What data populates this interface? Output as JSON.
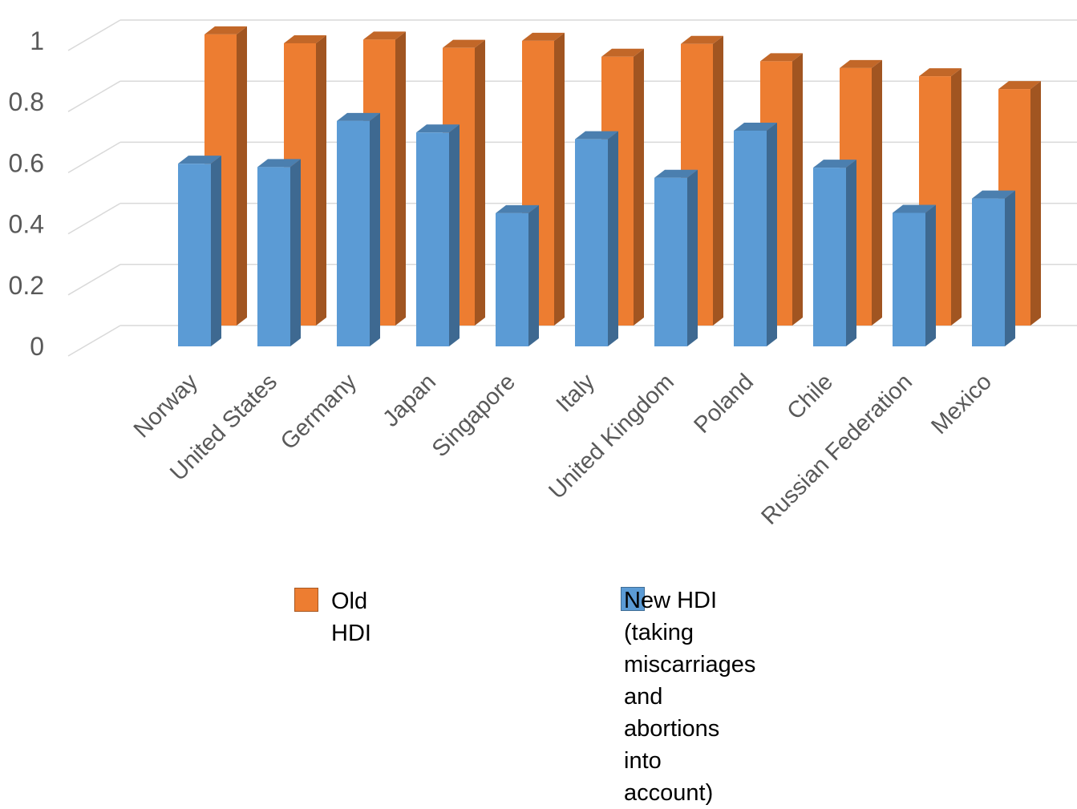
{
  "chart_data": {
    "type": "bar",
    "title": "",
    "xlabel": "",
    "ylabel": "",
    "ylim": [
      0,
      1
    ],
    "yticks": [
      "0",
      "0.2",
      "0.4",
      "0.6",
      "0.8",
      "1"
    ],
    "grid": true,
    "legend_position": "bottom",
    "categories": [
      "Norway",
      "United States",
      "Germany",
      "Japan",
      "Singapore",
      "Italy",
      "United Kingdom",
      "Poland",
      "Chile",
      "Russian Federation",
      "Mexico"
    ],
    "series": [
      {
        "name": "Old HDI",
        "color": "#ED7D31",
        "values": [
          0.953,
          0.924,
          0.936,
          0.909,
          0.932,
          0.88,
          0.922,
          0.865,
          0.843,
          0.816,
          0.774
        ]
      },
      {
        "name": "New HDI (taking miscarriages\nand abortions into account)",
        "color": "#5B9BD5",
        "values": [
          0.598,
          0.587,
          0.738,
          0.7,
          0.436,
          0.678,
          0.552,
          0.706,
          0.585,
          0.437,
          0.484
        ]
      }
    ]
  }
}
